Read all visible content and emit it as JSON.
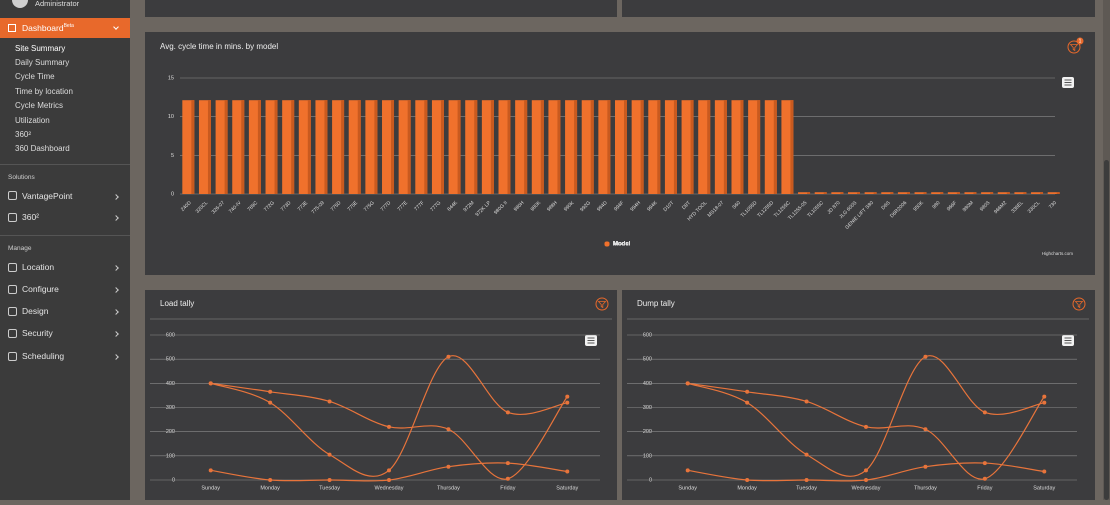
{
  "sidebar": {
    "user": "Administrator",
    "menu": "Dashboard",
    "menu_badge": "Beta",
    "submenu": [
      "Site Summary",
      "Daily Summary",
      "Cycle Time",
      "Time by location",
      "Cycle Metrics",
      "Utilization",
      "360²",
      "360 Dashboard"
    ],
    "sections": [
      {
        "title": "Solutions",
        "items": [
          "VantagePoint",
          "360²"
        ]
      },
      {
        "title": "Manage",
        "items": [
          "Location",
          "Configure",
          "Design",
          "Security",
          "Scheduling"
        ]
      }
    ]
  },
  "chart_data": [
    {
      "type": "bar",
      "title": "Avg. cycle time in mins. by model",
      "badge": "1",
      "credits": "Highcharts.com",
      "categories": [
        "240D",
        "320CL",
        "326-07",
        "740-IV",
        "769C",
        "772G",
        "773D",
        "773E",
        "775-09",
        "775D",
        "775E",
        "775G",
        "777D",
        "777E",
        "777F",
        "777G",
        "844K",
        "972M",
        "972K LP",
        "980G II",
        "980H",
        "980K",
        "988H",
        "990K",
        "992G",
        "994D",
        "994F",
        "994H",
        "994K",
        "D10T",
        "D9T",
        "HYD TOOL",
        "MS18-07",
        "S60",
        "TL1055D",
        "TL1255D",
        "TL1255C",
        "TL1255-05",
        "TL1055C",
        "JD 870",
        "JLG 600S",
        "GENIE LIFT S80",
        "D6S",
        "D6R2006",
        "950K",
        "980",
        "966F",
        "980M",
        "980S",
        "966M2",
        "336EL",
        "330CL",
        "730"
      ],
      "series": [
        {
          "name": "Model",
          "color": "#f0712c",
          "values": [
            12,
            12,
            12,
            12,
            12,
            12,
            12,
            12,
            12,
            12,
            12,
            12,
            12,
            12,
            12,
            12,
            12,
            12,
            12,
            12,
            12,
            12,
            12,
            12,
            12,
            12,
            12,
            12,
            12,
            12,
            12,
            12,
            12,
            12,
            12,
            12,
            12,
            0.1,
            0.1,
            0.1,
            0.1,
            0.1,
            0.1,
            0.1,
            0.1,
            0.1,
            0.1,
            0.1,
            0.1,
            0.1,
            0.1,
            0.1,
            0.1
          ]
        }
      ],
      "ylim": [
        0,
        15
      ],
      "yticks": [
        0,
        5,
        10,
        15
      ],
      "grid": true
    },
    {
      "type": "line",
      "title": "Load tally",
      "categories": [
        "Sunday",
        "Monday",
        "Tuesday",
        "Wednesday",
        "Thursday",
        "Friday",
        "Saturday"
      ],
      "series": [
        {
          "color": "#e8743b",
          "values": [
            400,
            365,
            325,
            220,
            210,
            5,
            345
          ]
        },
        {
          "color": "#e8743b",
          "values": [
            400,
            320,
            105,
            40,
            510,
            280,
            320
          ]
        },
        {
          "color": "#e8743b",
          "values": [
            40,
            0,
            0,
            0,
            55,
            70,
            35
          ]
        }
      ],
      "ylim": [
        0,
        600
      ],
      "yticks": [
        0,
        100,
        200,
        300,
        400,
        500,
        600
      ],
      "grid": true
    },
    {
      "type": "line",
      "title": "Dump tally",
      "categories": [
        "Sunday",
        "Monday",
        "Tuesday",
        "Wednesday",
        "Thursday",
        "Friday",
        "Saturday"
      ],
      "series": [
        {
          "color": "#e8743b",
          "values": [
            400,
            365,
            325,
            220,
            210,
            5,
            345
          ]
        },
        {
          "color": "#e8743b",
          "values": [
            400,
            320,
            105,
            40,
            510,
            280,
            320
          ]
        },
        {
          "color": "#e8743b",
          "values": [
            40,
            0,
            0,
            0,
            55,
            70,
            35
          ]
        }
      ],
      "ylim": [
        0,
        600
      ],
      "yticks": [
        0,
        100,
        200,
        300,
        400,
        500,
        600
      ],
      "grid": true
    }
  ]
}
